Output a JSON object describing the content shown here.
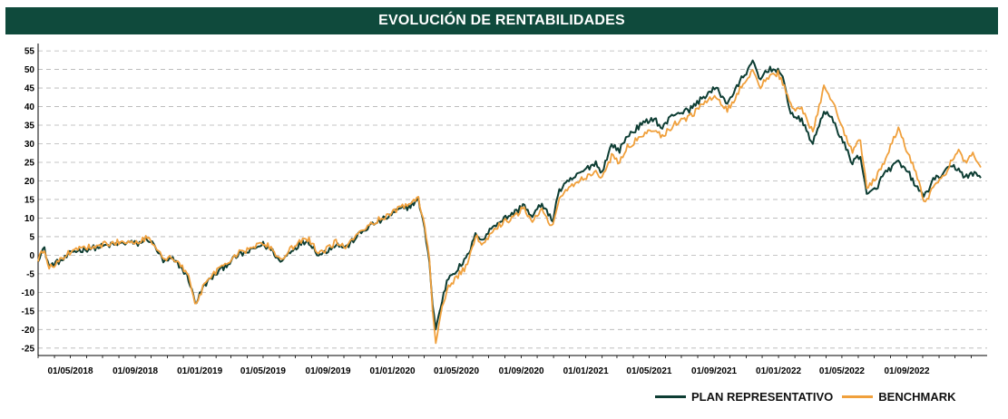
{
  "chart_data": {
    "type": "line",
    "title": "EVOLUCIÓN DE RENTABILIDADES",
    "xlabel": "",
    "ylabel": "",
    "ylim": [
      -27,
      56
    ],
    "yticks": [
      55,
      50,
      45,
      40,
      35,
      30,
      25,
      20,
      15,
      10,
      5,
      0,
      -5,
      -10,
      -15,
      -20,
      -25
    ],
    "xlim": [
      "2018-03-01",
      "2023-01-31"
    ],
    "xticks": [
      "01/05/2018",
      "01/09/2018",
      "01/01/2019",
      "01/05/2019",
      "01/09/2019",
      "01/01/2020",
      "01/05/2020",
      "01/09/2020",
      "01/01/2021",
      "01/05/2021",
      "01/09/2021",
      "01/01/2022",
      "01/05/2022",
      "01/09/2022"
    ],
    "grid": "horizontal-dashed",
    "legend_position": "bottom-right",
    "series": [
      {
        "name": "PLAN REPRESENTATIVO",
        "color": "#0d3d33",
        "points": [
          [
            "2018-03-01",
            -1
          ],
          [
            "2018-03-12",
            2
          ],
          [
            "2018-03-22",
            -3
          ],
          [
            "2018-04-05",
            -2
          ],
          [
            "2018-04-20",
            -1
          ],
          [
            "2018-05-05",
            1
          ],
          [
            "2018-05-25",
            1.5
          ],
          [
            "2018-06-15",
            2
          ],
          [
            "2018-07-05",
            2.5
          ],
          [
            "2018-07-30",
            3
          ],
          [
            "2018-08-20",
            3.5
          ],
          [
            "2018-09-05",
            3
          ],
          [
            "2018-09-25",
            4.5
          ],
          [
            "2018-10-10",
            2
          ],
          [
            "2018-10-25",
            -2
          ],
          [
            "2018-11-10",
            -1
          ],
          [
            "2018-11-25",
            -3
          ],
          [
            "2018-12-10",
            -6
          ],
          [
            "2018-12-24",
            -13
          ],
          [
            "2019-01-10",
            -8
          ],
          [
            "2019-02-01",
            -5
          ],
          [
            "2019-02-25",
            -2
          ],
          [
            "2019-03-15",
            0
          ],
          [
            "2019-04-05",
            1
          ],
          [
            "2019-04-30",
            3
          ],
          [
            "2019-05-20",
            1
          ],
          [
            "2019-06-03",
            -2
          ],
          [
            "2019-06-20",
            1
          ],
          [
            "2019-07-10",
            3
          ],
          [
            "2019-07-25",
            4
          ],
          [
            "2019-08-15",
            0
          ],
          [
            "2019-08-28",
            1
          ],
          [
            "2019-09-15",
            3
          ],
          [
            "2019-10-05",
            2
          ],
          [
            "2019-10-25",
            5
          ],
          [
            "2019-11-20",
            8
          ],
          [
            "2019-12-20",
            10
          ],
          [
            "2020-01-10",
            12
          ],
          [
            "2020-01-31",
            13
          ],
          [
            "2020-02-19",
            15
          ],
          [
            "2020-02-28",
            9
          ],
          [
            "2020-03-10",
            0
          ],
          [
            "2020-03-16",
            -12
          ],
          [
            "2020-03-23",
            -20
          ],
          [
            "2020-04-01",
            -14
          ],
          [
            "2020-04-15",
            -6
          ],
          [
            "2020-05-01",
            -4
          ],
          [
            "2020-05-20",
            -1
          ],
          [
            "2020-06-08",
            6
          ],
          [
            "2020-06-20",
            4
          ],
          [
            "2020-07-10",
            8
          ],
          [
            "2020-08-01",
            10
          ],
          [
            "2020-08-25",
            12
          ],
          [
            "2020-09-05",
            14
          ],
          [
            "2020-09-20",
            10
          ],
          [
            "2020-10-10",
            14
          ],
          [
            "2020-10-30",
            9
          ],
          [
            "2020-11-10",
            17
          ],
          [
            "2020-12-01",
            20
          ],
          [
            "2020-12-31",
            23
          ],
          [
            "2021-01-20",
            25
          ],
          [
            "2021-01-30",
            22
          ],
          [
            "2021-02-20",
            30
          ],
          [
            "2021-03-05",
            28
          ],
          [
            "2021-03-20",
            32
          ],
          [
            "2021-04-15",
            35
          ],
          [
            "2021-05-10",
            37
          ],
          [
            "2021-05-25",
            34
          ],
          [
            "2021-06-15",
            38
          ],
          [
            "2021-07-15",
            39
          ],
          [
            "2021-08-15",
            43
          ],
          [
            "2021-09-05",
            45
          ],
          [
            "2021-09-25",
            41
          ],
          [
            "2021-10-10",
            44
          ],
          [
            "2021-10-25",
            48
          ],
          [
            "2021-11-15",
            52
          ],
          [
            "2021-11-26",
            47
          ],
          [
            "2021-12-10",
            50
          ],
          [
            "2021-12-31",
            50
          ],
          [
            "2022-01-10",
            47
          ],
          [
            "2022-01-25",
            38
          ],
          [
            "2022-02-15",
            36
          ],
          [
            "2022-03-07",
            30
          ],
          [
            "2022-03-28",
            39
          ],
          [
            "2022-04-15",
            36
          ],
          [
            "2022-05-05",
            30
          ],
          [
            "2022-05-20",
            25
          ],
          [
            "2022-06-05",
            27
          ],
          [
            "2022-06-17",
            16
          ],
          [
            "2022-07-05",
            18
          ],
          [
            "2022-07-20",
            22
          ],
          [
            "2022-08-15",
            25
          ],
          [
            "2022-09-05",
            22
          ],
          [
            "2022-09-20",
            18
          ],
          [
            "2022-10-05",
            16
          ],
          [
            "2022-10-20",
            20
          ],
          [
            "2022-11-10",
            22
          ],
          [
            "2022-11-25",
            24
          ],
          [
            "2022-12-10",
            23
          ],
          [
            "2022-12-20",
            21
          ],
          [
            "2023-01-05",
            22
          ],
          [
            "2023-01-20",
            21
          ]
        ]
      },
      {
        "name": "BENCHMARK",
        "color": "#f0a03c",
        "points": [
          [
            "2018-03-01",
            -1
          ],
          [
            "2018-03-12",
            1.5
          ],
          [
            "2018-03-22",
            -3.5
          ],
          [
            "2018-04-05",
            -2
          ],
          [
            "2018-04-20",
            -0.5
          ],
          [
            "2018-05-05",
            1.5
          ],
          [
            "2018-05-25",
            2
          ],
          [
            "2018-06-15",
            2.5
          ],
          [
            "2018-07-05",
            3
          ],
          [
            "2018-07-30",
            3.5
          ],
          [
            "2018-08-20",
            4
          ],
          [
            "2018-09-05",
            3.5
          ],
          [
            "2018-09-25",
            5
          ],
          [
            "2018-10-10",
            2.5
          ],
          [
            "2018-10-25",
            -1.5
          ],
          [
            "2018-11-10",
            -0.5
          ],
          [
            "2018-11-25",
            -2.5
          ],
          [
            "2018-12-10",
            -5.5
          ],
          [
            "2018-12-24",
            -14
          ],
          [
            "2019-01-10",
            -7.5
          ],
          [
            "2019-02-01",
            -4.5
          ],
          [
            "2019-02-25",
            -1.5
          ],
          [
            "2019-03-15",
            0.5
          ],
          [
            "2019-04-05",
            1.5
          ],
          [
            "2019-04-30",
            3.5
          ],
          [
            "2019-05-20",
            1.5
          ],
          [
            "2019-06-03",
            -1.5
          ],
          [
            "2019-06-20",
            1.5
          ],
          [
            "2019-07-10",
            3.5
          ],
          [
            "2019-07-25",
            4.5
          ],
          [
            "2019-08-15",
            0.5
          ],
          [
            "2019-08-28",
            1.5
          ],
          [
            "2019-09-15",
            3.5
          ],
          [
            "2019-10-05",
            2.5
          ],
          [
            "2019-10-25",
            5.5
          ],
          [
            "2019-11-20",
            8.5
          ],
          [
            "2019-12-20",
            10.5
          ],
          [
            "2020-01-10",
            12.5
          ],
          [
            "2020-01-31",
            13.5
          ],
          [
            "2020-02-19",
            15.5
          ],
          [
            "2020-02-28",
            10
          ],
          [
            "2020-03-10",
            1
          ],
          [
            "2020-03-16",
            -13
          ],
          [
            "2020-03-23",
            -23
          ],
          [
            "2020-04-01",
            -16
          ],
          [
            "2020-04-15",
            -9
          ],
          [
            "2020-05-01",
            -6
          ],
          [
            "2020-05-20",
            -3
          ],
          [
            "2020-06-08",
            5
          ],
          [
            "2020-06-20",
            3
          ],
          [
            "2020-07-10",
            7
          ],
          [
            "2020-08-01",
            9
          ],
          [
            "2020-08-25",
            11
          ],
          [
            "2020-09-05",
            13
          ],
          [
            "2020-09-20",
            9
          ],
          [
            "2020-10-10",
            12
          ],
          [
            "2020-10-30",
            7
          ],
          [
            "2020-11-10",
            15
          ],
          [
            "2020-12-01",
            18
          ],
          [
            "2020-12-31",
            21
          ],
          [
            "2021-01-20",
            23
          ],
          [
            "2021-01-30",
            20
          ],
          [
            "2021-02-20",
            27
          ],
          [
            "2021-03-05",
            25
          ],
          [
            "2021-03-20",
            29
          ],
          [
            "2021-04-15",
            32
          ],
          [
            "2021-05-10",
            34
          ],
          [
            "2021-05-25",
            32
          ],
          [
            "2021-06-15",
            35
          ],
          [
            "2021-07-15",
            37
          ],
          [
            "2021-08-15",
            41
          ],
          [
            "2021-09-05",
            43
          ],
          [
            "2021-09-25",
            39
          ],
          [
            "2021-10-10",
            42
          ],
          [
            "2021-10-25",
            46
          ],
          [
            "2021-11-15",
            50
          ],
          [
            "2021-11-26",
            45
          ],
          [
            "2021-12-10",
            48
          ],
          [
            "2021-12-31",
            49
          ],
          [
            "2022-01-10",
            46
          ],
          [
            "2022-01-25",
            40
          ],
          [
            "2022-02-15",
            39
          ],
          [
            "2022-03-07",
            33
          ],
          [
            "2022-03-28",
            45
          ],
          [
            "2022-04-15",
            41
          ],
          [
            "2022-05-05",
            33
          ],
          [
            "2022-05-20",
            28
          ],
          [
            "2022-06-05",
            31
          ],
          [
            "2022-06-17",
            18
          ],
          [
            "2022-07-05",
            21
          ],
          [
            "2022-07-20",
            25
          ],
          [
            "2022-08-15",
            34
          ],
          [
            "2022-09-05",
            27
          ],
          [
            "2022-09-20",
            21
          ],
          [
            "2022-10-05",
            14
          ],
          [
            "2022-10-20",
            18
          ],
          [
            "2022-11-10",
            21
          ],
          [
            "2022-11-25",
            26
          ],
          [
            "2022-12-10",
            28
          ],
          [
            "2022-12-20",
            25
          ],
          [
            "2023-01-05",
            27
          ],
          [
            "2023-01-20",
            24
          ]
        ]
      }
    ]
  }
}
